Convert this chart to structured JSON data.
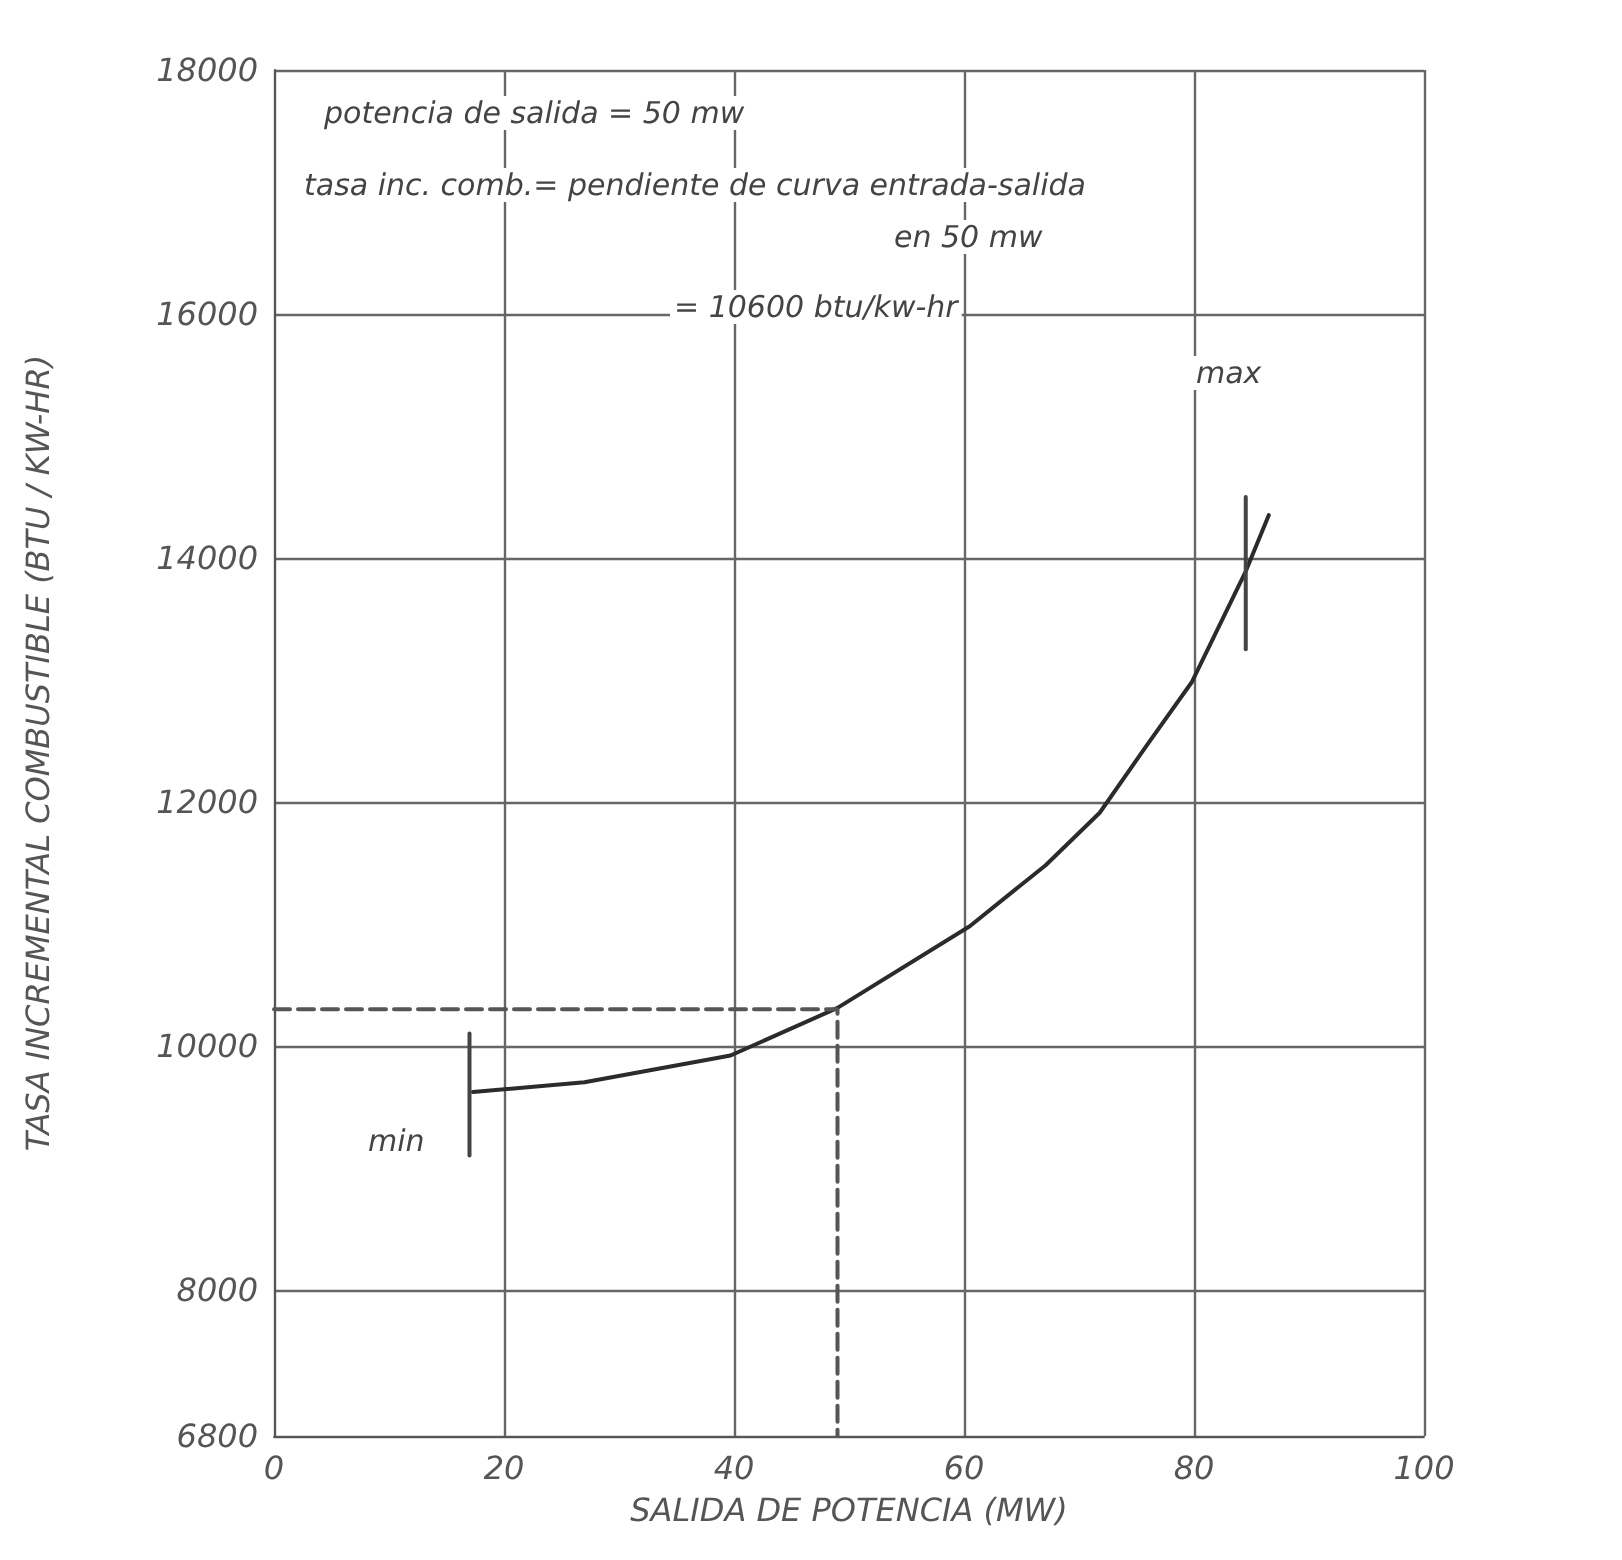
{
  "chart_data": {
    "type": "line",
    "xlabel": "SALIDA DE POTENCIA (MW)",
    "ylabel": "TASA INCREMENTAL COMBUSTIBLE (BTU / KW-HR)",
    "xlim": [
      0,
      100
    ],
    "xticks": [
      0,
      20,
      40,
      60,
      80,
      100
    ],
    "ylim": [
      6800,
      18000
    ],
    "yticks": [
      6800,
      8000,
      10000,
      12000,
      14000,
      16000,
      18000
    ],
    "grid": true,
    "marker": "none",
    "series": [
      {
        "color": "#2b2b2b",
        "line_style": "solid",
        "x": [
          17.3,
          27,
          39.7,
          49,
          60.5,
          67.1,
          71.8,
          75.8,
          79.8,
          84.5,
          86.5
        ],
        "values": [
          9620,
          9700,
          9920,
          10310,
          10980,
          11480,
          11910,
          12450,
          12980,
          13890,
          14350
        ]
      },
      {
        "color": "#555555",
        "line_style": "dashed",
        "x": [
          0,
          49,
          49
        ],
        "values": [
          10300,
          10300,
          6800
        ]
      },
      {
        "color": "#444444",
        "line_style": "solid",
        "x": [
          17,
          17
        ],
        "values": [
          9100,
          10100
        ]
      },
      {
        "color": "#444444",
        "line_style": "solid",
        "x": [
          84.5,
          84.5
        ],
        "values": [
          14500,
          13250
        ]
      }
    ],
    "annotations": [
      "potencia de salida = 50 mw",
      "tasa inc. comb.= pendiente de curva entrada-salida",
      "en 50 mw",
      "= 10600 btu/kw-hr",
      "min",
      "max"
    ]
  }
}
